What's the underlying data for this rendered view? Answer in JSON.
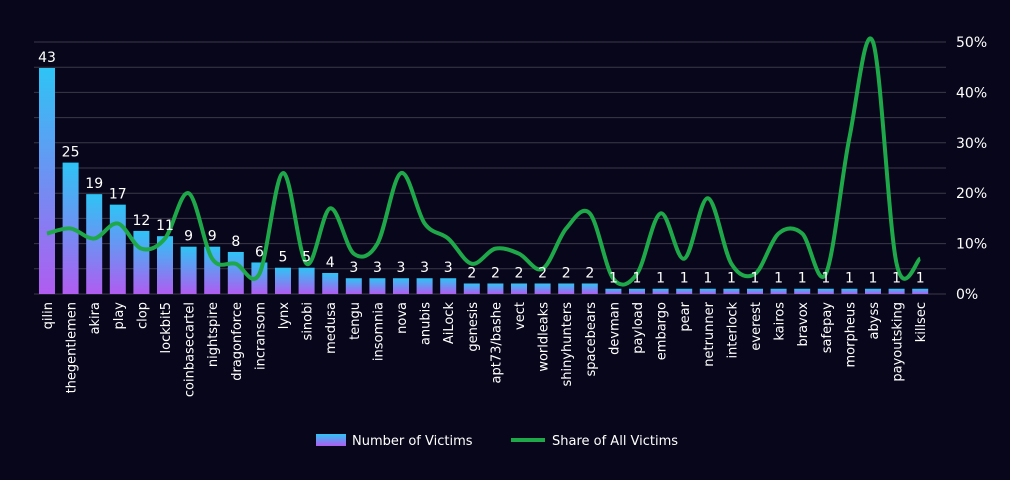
{
  "chart_data": {
    "type": "bar",
    "categories": [
      "qilin",
      "thegentlemen",
      "akira",
      "play",
      "clop",
      "lockbit5",
      "coinbasecartel",
      "nightspire",
      "dragonforce",
      "incransom",
      "lynx",
      "sinobi",
      "medusa",
      "tengu",
      "insomnia",
      "nova",
      "anubis",
      "AiLock",
      "genesis",
      "apt73/bashe",
      "vect",
      "worldleaks",
      "shinyhunters",
      "spacebears",
      "devman",
      "payload",
      "embargo",
      "pear",
      "netrunner",
      "interlock",
      "everest",
      "kairos",
      "bravox",
      "safepay",
      "morpheus",
      "abyss",
      "payoutsking",
      "killsec"
    ],
    "series": [
      {
        "name": "Number of Victims",
        "type": "bar",
        "axis": "left",
        "values": [
          43,
          25,
          19,
          17,
          12,
          11,
          9,
          9,
          8,
          6,
          5,
          5,
          4,
          3,
          3,
          3,
          3,
          3,
          2,
          2,
          2,
          2,
          2,
          2,
          1,
          1,
          1,
          1,
          1,
          1,
          1,
          1,
          1,
          1,
          1,
          1,
          1,
          1
        ]
      },
      {
        "name": "Share of All Victims",
        "type": "line",
        "axis": "right",
        "values": [
          12,
          13,
          11,
          14,
          9,
          11,
          20,
          7,
          6,
          4,
          24,
          6,
          17,
          8,
          10,
          24,
          14,
          11,
          6,
          9,
          8,
          5,
          13,
          16,
          3,
          4,
          16,
          7,
          19,
          6,
          4,
          12,
          12,
          4,
          31,
          50,
          6,
          7
        ]
      }
    ],
    "y_right_ticks": [
      "0%",
      "10%",
      "20%",
      "30%",
      "40%",
      "50%"
    ],
    "y_right_lim": [
      0,
      50
    ],
    "y_left_lim": [
      0,
      43
    ],
    "grid": true,
    "legend_position": "bottom",
    "data_labels": true,
    "colors": {
      "background": "#08061a",
      "bar_top": "#2ec4f5",
      "bar_bottom": "#b05cf0",
      "line": "#1ea84a",
      "grid": "#3a3848",
      "text": "#ffffff"
    }
  }
}
